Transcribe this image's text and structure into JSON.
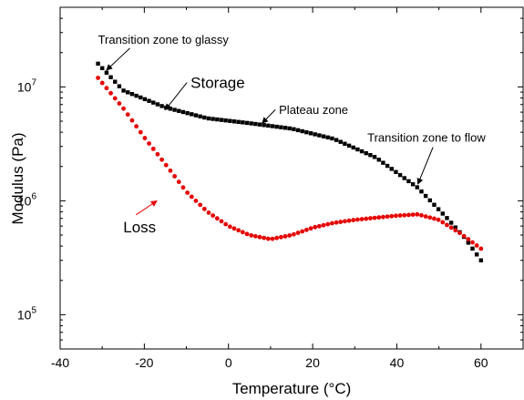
{
  "chart_data": {
    "type": "scatter",
    "title": "",
    "xlabel": "Temperature (°C)",
    "ylabel": "Modulus (Pa)",
    "xlim": [
      -40,
      70
    ],
    "ylim": [
      50000,
      50000000
    ],
    "yscale": "log",
    "x_ticks": [
      {
        "value": -40,
        "label": "-40"
      },
      {
        "value": -20,
        "label": "-20"
      },
      {
        "value": 0,
        "label": "0"
      },
      {
        "value": 20,
        "label": "20"
      },
      {
        "value": 40,
        "label": "40"
      },
      {
        "value": 60,
        "label": "60"
      }
    ],
    "y_ticks": [
      {
        "value": 100000,
        "base": "10",
        "exp": "5"
      },
      {
        "value": 1000000,
        "base": "10",
        "exp": "6"
      },
      {
        "value": 10000000,
        "base": "10",
        "exp": "7"
      }
    ],
    "grid": false,
    "legend": "none",
    "series": [
      {
        "name": "Storage",
        "color": "#000000",
        "marker": "square",
        "curve": [
          [
            -31,
            16000000
          ],
          [
            -25,
            9300000
          ],
          [
            -15,
            6600000
          ],
          [
            -5,
            5300000
          ],
          [
            5,
            4800000
          ],
          [
            15,
            4300000
          ],
          [
            25,
            3500000
          ],
          [
            35,
            2400000
          ],
          [
            45,
            1300000
          ],
          [
            52,
            700000
          ],
          [
            56,
            480000
          ],
          [
            60,
            300000
          ]
        ],
        "n_points": 91
      },
      {
        "name": "Loss",
        "color": "#e60000",
        "marker": "circle",
        "curve": [
          [
            -31,
            12000000
          ],
          [
            -25,
            6500000
          ],
          [
            -20,
            3600000
          ],
          [
            -15,
            2100000
          ],
          [
            -10,
            1200000
          ],
          [
            -5,
            800000
          ],
          [
            0,
            600000
          ],
          [
            5,
            500000
          ],
          [
            10,
            460000
          ],
          [
            15,
            500000
          ],
          [
            20,
            580000
          ],
          [
            25,
            640000
          ],
          [
            30,
            680000
          ],
          [
            35,
            710000
          ],
          [
            40,
            740000
          ],
          [
            45,
            760000
          ],
          [
            50,
            680000
          ],
          [
            55,
            520000
          ],
          [
            60,
            380000
          ]
        ],
        "n_points": 91
      }
    ],
    "annotations": [
      {
        "text": "Transition zone to glassy",
        "x": -31,
        "y": 24000000,
        "arrow_to": [
          -29,
          14000000
        ],
        "size": 13
      },
      {
        "text": "Storage",
        "x": -9,
        "y": 9800000,
        "arrow_to": [
          -15,
          6300000
        ],
        "size": 17
      },
      {
        "text": "Plateau zone",
        "x": 12,
        "y": 5800000,
        "arrow_to": [
          8,
          4800000
        ],
        "size": 13
      },
      {
        "text": "Transition zone to flow",
        "x": 33,
        "y": 3300000,
        "arrow_to": [
          45,
          1400000
        ],
        "size": 13
      },
      {
        "text": "Loss",
        "x": -25,
        "y": 530000,
        "arrow_to": [
          -17,
          1000000
        ],
        "size": 17,
        "color": "#e60000"
      }
    ]
  }
}
